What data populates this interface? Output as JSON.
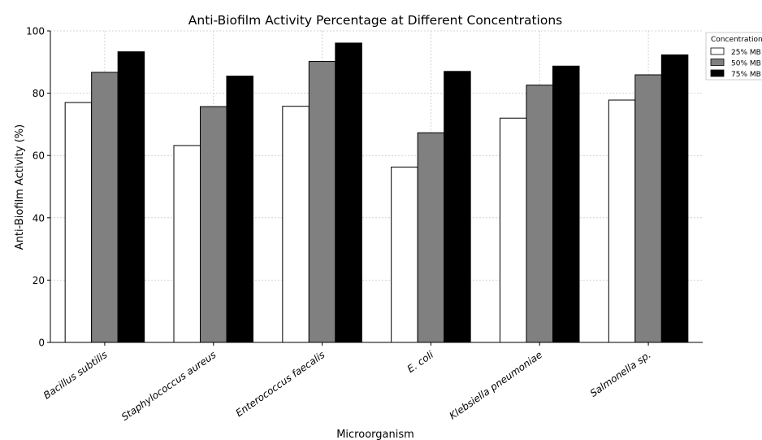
{
  "chart_data": {
    "type": "bar",
    "title": "Anti-Biofilm Activity Percentage at Different Concentrations",
    "xlabel": "Microorganism",
    "ylabel": "Anti-Biofilm Activity (%)",
    "categories": [
      "Bacillus subtilis",
      "Staphylococcus aureus",
      "Enterococcus faecalis",
      "E. coli",
      "Klebsiella pneumoniae",
      "Salmonella sp."
    ],
    "series": [
      {
        "name": "25% MB",
        "values": [
          77,
          63.2,
          75.8,
          56.3,
          72,
          77.8
        ]
      },
      {
        "name": "50% MB",
        "values": [
          86.7,
          75.7,
          90.2,
          67.3,
          82.6,
          85.9
        ]
      },
      {
        "name": "75% MB",
        "values": [
          93.3,
          85.5,
          96.1,
          87,
          88.7,
          92.3
        ]
      }
    ],
    "ylim": [
      0,
      100
    ],
    "yticks": [
      0,
      20,
      40,
      60,
      80,
      100
    ],
    "grid": true,
    "legend": {
      "title": "Concentration",
      "placement": "top-right"
    },
    "colors": [
      "#ffffff",
      "#808080",
      "#000000"
    ]
  }
}
